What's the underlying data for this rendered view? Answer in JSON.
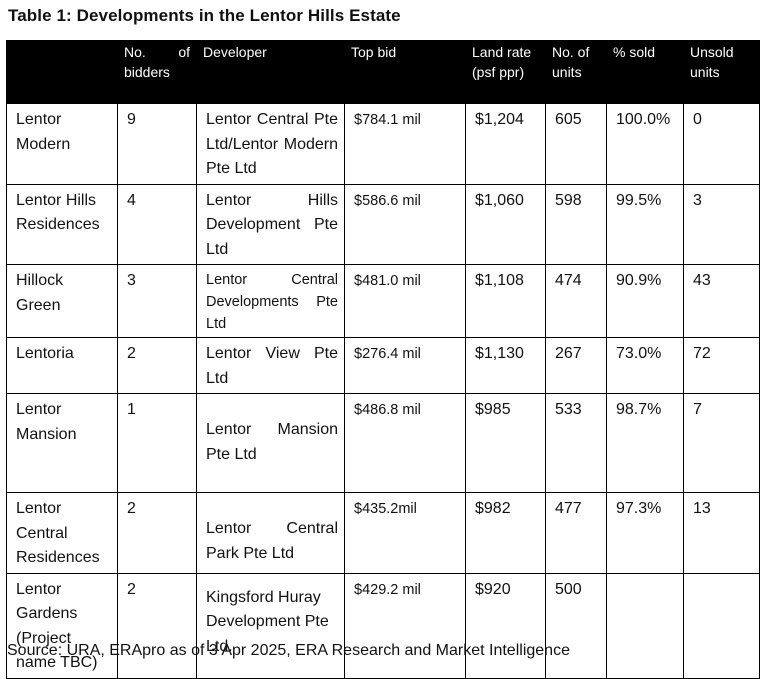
{
  "title": "Table 1: Developments in the Lentor Hills Estate",
  "headers": {
    "name": "",
    "bidders": "No. of bidders",
    "developer": "Developer",
    "top_bid": "Top bid",
    "land_rate": "Land rate (psf ppr)",
    "units": "No. of units",
    "sold": "% sold",
    "unsold": "Unsold units"
  },
  "rows": [
    {
      "name": "Lentor Modern",
      "bidders": "9",
      "developer": "Lentor Central Pte Ltd/Lentor Modern Pte Ltd",
      "top_bid": "$784.1 mil",
      "land_rate": "$1,204",
      "units": "605",
      "sold": "100.0%",
      "unsold": "0"
    },
    {
      "name": "Lentor Hills Residences",
      "bidders": "4",
      "developer": "Lentor Hills Development Pte Ltd",
      "top_bid": "$586.6 mil",
      "land_rate": "$1,060",
      "units": "598",
      "sold": "99.5%",
      "unsold": "3"
    },
    {
      "name": "Hillock Green",
      "bidders": "3",
      "developer": "Lentor Central Developments Pte Ltd",
      "top_bid": "$481.0 mil",
      "land_rate": "$1,108",
      "units": "474",
      "sold": "90.9%",
      "unsold": "43"
    },
    {
      "name": "Lentoria",
      "bidders": "2",
      "developer": "Lentor View Pte Ltd",
      "top_bid": "$276.4 mil",
      "land_rate": "$1,130",
      "units": "267",
      "sold": "73.0%",
      "unsold": "72"
    },
    {
      "name": "Lentor Mansion",
      "bidders": "1",
      "developer": "Lentor Mansion Pte Ltd",
      "top_bid": "$486.8 mil",
      "land_rate": "$985",
      "units": "533",
      "sold": "98.7%",
      "unsold": "7"
    },
    {
      "name": "Lentor Central Residences",
      "bidders": "2",
      "developer": "Lentor Central Park Pte Ltd",
      "top_bid": "$435.2mil",
      "land_rate": "$982",
      "units": "477",
      "sold": "97.3%",
      "unsold": "13"
    },
    {
      "name": "Lentor Gardens (Project name TBC)",
      "bidders": "2",
      "developer": "Kingsford Huray Development Pte Ltd.",
      "top_bid": "$429.2 mil",
      "land_rate": "$920",
      "units": "500",
      "sold": "",
      "unsold": ""
    }
  ],
  "source": "Source: URA, ERApro as of 3 Apr 2025, ERA Research and Market Intelligence"
}
